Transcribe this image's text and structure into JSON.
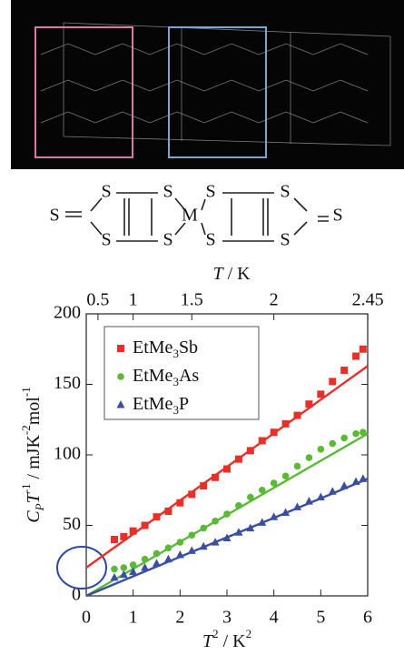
{
  "molecule": {
    "atoms": [
      "S",
      "S",
      "S",
      "S",
      "S",
      "M",
      "S",
      "S",
      "S",
      "S",
      "S"
    ]
  },
  "chart_data": {
    "type": "scatter",
    "x_label": "T2 / K2",
    "x2_label": "T / K",
    "y_label": "CPT-1 / mJK-2mol-1",
    "x": [
      0.6,
      0.8,
      1.0,
      1.25,
      1.5,
      1.75,
      2.0,
      2.25,
      2.5,
      2.75,
      3.0,
      3.25,
      3.5,
      3.75,
      4.0,
      4.25,
      4.5,
      4.75,
      5.0,
      5.25,
      5.5,
      5.75,
      5.9
    ],
    "series": [
      {
        "name": "EtMe3Sb",
        "color": "#e8302a",
        "marker": "square",
        "values": [
          40,
          42,
          46,
          50,
          56,
          60,
          66,
          72,
          78,
          84,
          90,
          97,
          103,
          110,
          116,
          122,
          128,
          136,
          143,
          152,
          160,
          170,
          175
        ],
        "fit_x": [
          0,
          6
        ],
        "fit": [
          20,
          163
        ]
      },
      {
        "name": "EtMe3As",
        "color": "#5ab935",
        "marker": "circle",
        "values": [
          19,
          20,
          22,
          26,
          30,
          34,
          38,
          43,
          48,
          53,
          58,
          64,
          70,
          75,
          80,
          85,
          92,
          98,
          104,
          108,
          112,
          115,
          116
        ],
        "fit_x": [
          0,
          6
        ],
        "fit": [
          0,
          115
        ]
      },
      {
        "name": "EtMe3P",
        "color": "#3a4fa0",
        "marker": "triangle",
        "values": [
          13,
          15,
          17,
          20,
          23,
          26,
          29,
          32,
          35,
          38,
          41,
          45,
          48,
          52,
          56,
          59,
          63,
          67,
          70,
          74,
          78,
          81,
          83
        ],
        "fit_x": [
          0,
          6
        ],
        "fit": [
          0,
          83
        ]
      }
    ],
    "xlim": [
      0,
      6
    ],
    "xticks": [
      0,
      1,
      2,
      3,
      4,
      5,
      6
    ],
    "ylim": [
      0,
      200
    ],
    "yticks": [
      0,
      50,
      100,
      150,
      200
    ],
    "x2ticks": [
      0.5,
      1,
      1.5,
      2,
      2.45
    ],
    "x2_scale": "square"
  }
}
